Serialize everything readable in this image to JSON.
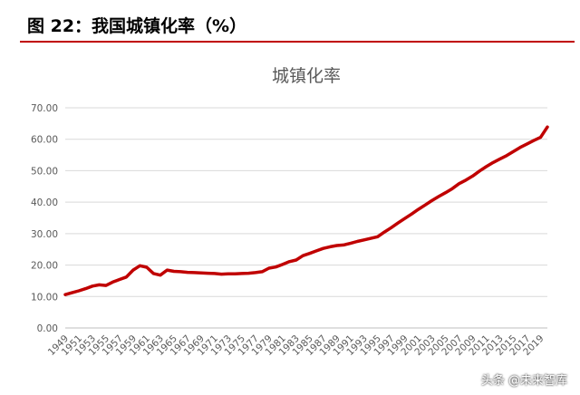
{
  "figure": {
    "caption": "图 22：我国城镇化率（%）",
    "accent_color": "#c00000",
    "watermark": "头条 @未来智库"
  },
  "chart_data": {
    "type": "line",
    "title": "城镇化率",
    "xlabel": "",
    "ylabel": "",
    "ylim": [
      0,
      70
    ],
    "yticks": [
      "0.00",
      "10.00",
      "20.00",
      "30.00",
      "40.00",
      "50.00",
      "60.00",
      "70.00"
    ],
    "xtick_labels": [
      "1949",
      "1951",
      "1953",
      "1955",
      "1957",
      "1959",
      "1961",
      "1963",
      "1965",
      "1967",
      "1969",
      "1971",
      "1973",
      "1975",
      "1977",
      "1979",
      "1981",
      "1983",
      "1985",
      "1987",
      "1989",
      "1991",
      "1993",
      "1995",
      "1997",
      "1999",
      "2001",
      "2003",
      "2005",
      "2007",
      "2009",
      "2011",
      "2013",
      "2015",
      "2017",
      "2019"
    ],
    "grid": true,
    "legend": "none",
    "line_color": "#c00000",
    "series": [
      {
        "x": [
          1949,
          1950,
          1951,
          1952,
          1953,
          1954,
          1955,
          1956,
          1957,
          1958,
          1959,
          1960,
          1961,
          1962,
          1963,
          1964,
          1965,
          1966,
          1967,
          1968,
          1969,
          1970,
          1971,
          1972,
          1973,
          1974,
          1975,
          1976,
          1977,
          1978,
          1979,
          1980,
          1981,
          1982,
          1983,
          1984,
          1985,
          1986,
          1987,
          1988,
          1989,
          1990,
          1991,
          1992,
          1993,
          1994,
          1995,
          1996,
          1997,
          1998,
          1999,
          2000,
          2001,
          2002,
          2003,
          2004,
          2005,
          2006,
          2007,
          2008,
          2009,
          2010,
          2011,
          2012,
          2013,
          2014,
          2015,
          2016,
          2017,
          2018,
          2019,
          2020
        ],
        "values": [
          10.6,
          11.2,
          11.8,
          12.5,
          13.3,
          13.7,
          13.5,
          14.6,
          15.4,
          16.2,
          18.4,
          19.8,
          19.3,
          17.3,
          16.8,
          18.4,
          18.0,
          17.9,
          17.7,
          17.6,
          17.5,
          17.4,
          17.3,
          17.1,
          17.2,
          17.2,
          17.3,
          17.4,
          17.6,
          17.9,
          19.0,
          19.4,
          20.2,
          21.1,
          21.6,
          23.0,
          23.7,
          24.5,
          25.3,
          25.8,
          26.2,
          26.4,
          26.9,
          27.5,
          28.0,
          28.5,
          29.0,
          30.5,
          31.9,
          33.4,
          34.8,
          36.2,
          37.7,
          39.1,
          40.5,
          41.8,
          43.0,
          44.3,
          45.9,
          47.0,
          48.3,
          49.9,
          51.3,
          52.6,
          53.7,
          54.8,
          56.1,
          57.4,
          58.5,
          59.6,
          60.6,
          63.9
        ]
      }
    ]
  }
}
